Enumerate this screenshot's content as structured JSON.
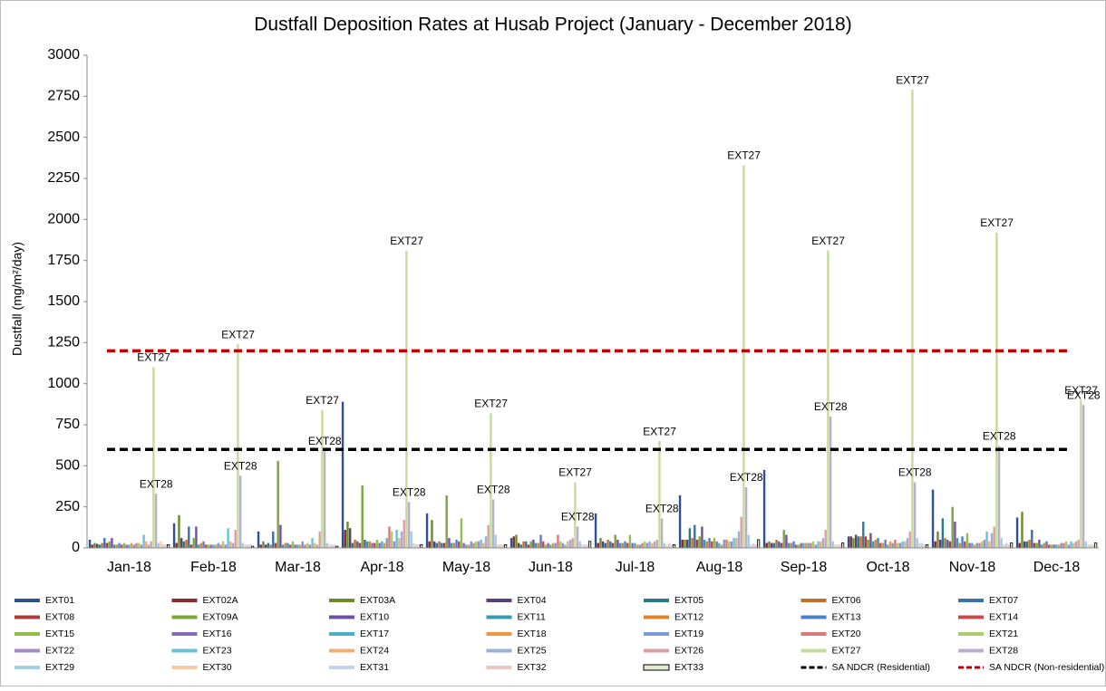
{
  "chart_data": {
    "type": "bar",
    "title": "Dustfall Deposition Rates at Husab Project (January - December 2018)",
    "y_label": "Dustfall (mg/m²/day)",
    "categories": [
      "Jan-18",
      "Feb-18",
      "Mar-18",
      "Apr-18",
      "May-18",
      "Jun-18",
      "Jul-18",
      "Aug-18",
      "Sep-18",
      "Oct-18",
      "Nov-18",
      "Dec-18"
    ],
    "ylim": [
      0,
      3000
    ],
    "yticks": [
      0,
      250,
      500,
      750,
      1000,
      1250,
      1500,
      1750,
      2000,
      2250,
      2500,
      2750,
      3000
    ],
    "grid": false,
    "legend": "bottom",
    "series": [
      {
        "name": "EXT01",
        "color": "#2f4f8f",
        "values": [
          50,
          150,
          100,
          890,
          210,
          60,
          210,
          320,
          475,
          70,
          355,
          185
        ]
      },
      {
        "name": "EXT02A",
        "color": "#8b2a2a",
        "values": [
          20,
          30,
          20,
          110,
          40,
          70,
          30,
          50,
          30,
          70,
          40,
          30
        ]
      },
      {
        "name": "EXT03A",
        "color": "#6b8a2e",
        "values": [
          30,
          200,
          40,
          160,
          170,
          80,
          60,
          50,
          40,
          60,
          100,
          220
        ]
      },
      {
        "name": "EXT04",
        "color": "#5a3f7f",
        "values": [
          25,
          60,
          20,
          120,
          40,
          30,
          40,
          50,
          30,
          80,
          50,
          40
        ]
      },
      {
        "name": "EXT05",
        "color": "#2a7a8a",
        "values": [
          20,
          40,
          30,
          30,
          30,
          20,
          30,
          120,
          30,
          70,
          180,
          40
        ]
      },
      {
        "name": "EXT06",
        "color": "#c0702a",
        "values": [
          30,
          50,
          20,
          50,
          40,
          40,
          50,
          60,
          50,
          70,
          60,
          50
        ]
      },
      {
        "name": "EXT07",
        "color": "#3a6fb0",
        "values": [
          60,
          130,
          100,
          40,
          30,
          40,
          40,
          140,
          40,
          160,
          50,
          110
        ]
      },
      {
        "name": "EXT08",
        "color": "#b03a3a",
        "values": [
          30,
          20,
          30,
          30,
          30,
          20,
          30,
          50,
          30,
          70,
          40,
          30
        ]
      },
      {
        "name": "EXT09A",
        "color": "#7aa63a",
        "values": [
          40,
          60,
          530,
          380,
          320,
          40,
          80,
          70,
          110,
          50,
          250,
          30
        ]
      },
      {
        "name": "EXT10",
        "color": "#6f4f9f",
        "values": [
          60,
          130,
          140,
          50,
          60,
          50,
          50,
          130,
          80,
          90,
          160,
          50
        ]
      },
      {
        "name": "EXT11",
        "color": "#3a9ab0",
        "values": [
          20,
          20,
          20,
          40,
          30,
          30,
          30,
          50,
          30,
          40,
          60,
          20
        ]
      },
      {
        "name": "EXT12",
        "color": "#e0832f",
        "values": [
          20,
          30,
          30,
          40,
          30,
          30,
          30,
          40,
          30,
          50,
          30,
          30
        ]
      },
      {
        "name": "EXT13",
        "color": "#4a80c8",
        "values": [
          30,
          40,
          30,
          30,
          50,
          80,
          40,
          60,
          40,
          60,
          70,
          40
        ]
      },
      {
        "name": "EXT14",
        "color": "#c84a4a",
        "values": [
          20,
          20,
          20,
          30,
          40,
          40,
          30,
          40,
          20,
          30,
          40,
          20
        ]
      },
      {
        "name": "EXT15",
        "color": "#8fbf4a",
        "values": [
          30,
          20,
          40,
          50,
          180,
          20,
          80,
          60,
          20,
          30,
          90,
          20
        ]
      },
      {
        "name": "EXT16",
        "color": "#8a6ab8",
        "values": [
          20,
          20,
          20,
          30,
          30,
          30,
          30,
          40,
          30,
          50,
          30,
          20
        ]
      },
      {
        "name": "EXT17",
        "color": "#4ab0c8",
        "values": [
          20,
          20,
          20,
          40,
          20,
          20,
          30,
          30,
          30,
          20,
          30,
          20
        ]
      },
      {
        "name": "EXT18",
        "color": "#f0963f",
        "values": [
          30,
          20,
          20,
          30,
          20,
          30,
          20,
          20,
          30,
          40,
          20,
          20
        ]
      },
      {
        "name": "EXT19",
        "color": "#7a9ad8",
        "values": [
          20,
          30,
          40,
          60,
          40,
          30,
          20,
          50,
          30,
          30,
          30,
          30
        ]
      },
      {
        "name": "EXT20",
        "color": "#d87a7a",
        "values": [
          30,
          20,
          20,
          130,
          30,
          80,
          30,
          50,
          30,
          50,
          30,
          30
        ]
      },
      {
        "name": "EXT21",
        "color": "#a8cf6a",
        "values": [
          30,
          40,
          30,
          100,
          40,
          40,
          40,
          40,
          40,
          30,
          40,
          40
        ]
      },
      {
        "name": "EXT22",
        "color": "#a48ac8",
        "values": [
          20,
          20,
          20,
          40,
          40,
          30,
          30,
          40,
          20,
          30,
          50,
          20
        ]
      },
      {
        "name": "EXT23",
        "color": "#6ac0d8",
        "values": [
          80,
          120,
          60,
          110,
          50,
          20,
          40,
          60,
          40,
          40,
          100,
          40
        ]
      },
      {
        "name": "EXT24",
        "color": "#f5ad70",
        "values": [
          40,
          40,
          30,
          60,
          30,
          40,
          30,
          60,
          40,
          40,
          40,
          30
        ]
      },
      {
        "name": "EXT25",
        "color": "#9ab0dc",
        "values": [
          20,
          30,
          20,
          100,
          70,
          50,
          40,
          100,
          60,
          60,
          90,
          40
        ]
      },
      {
        "name": "EXT26",
        "color": "#dca0a0",
        "values": [
          40,
          110,
          100,
          170,
          140,
          60,
          50,
          190,
          110,
          100,
          130,
          50
        ]
      },
      {
        "name": "EXT27",
        "color": "#c4dc9a",
        "show_name_labels": true,
        "values": [
          1100,
          1240,
          840,
          1810,
          820,
          400,
          650,
          2330,
          1810,
          2790,
          1920,
          900
        ]
      },
      {
        "name": "EXT28",
        "color": "#b8aed0",
        "show_name_labels": true,
        "values": [
          330,
          440,
          590,
          280,
          295,
          130,
          180,
          370,
          800,
          400,
          620,
          870
        ]
      },
      {
        "name": "EXT29",
        "color": "#a0d0e4",
        "values": [
          30,
          30,
          30,
          100,
          80,
          40,
          30,
          80,
          40,
          60,
          60,
          40
        ]
      },
      {
        "name": "EXT30",
        "color": "#f8c8a0",
        "values": [
          40,
          20,
          20,
          30,
          20,
          20,
          20,
          20,
          20,
          30,
          20,
          20
        ]
      },
      {
        "name": "EXT31",
        "color": "#c4d0ec",
        "values": [
          20,
          20,
          20,
          20,
          20,
          20,
          30,
          30,
          20,
          30,
          30,
          20
        ]
      },
      {
        "name": "EXT32",
        "color": "#ecc4c4",
        "values": [
          20,
          20,
          20,
          20,
          20,
          20,
          20,
          20,
          20,
          20,
          20,
          20
        ]
      },
      {
        "name": "EXT33",
        "color": "#e4ecd4",
        "outline": "#000000",
        "values": [
          20,
          10,
          10,
          20,
          20,
          40,
          20,
          50,
          30,
          20,
          30,
          30
        ]
      }
    ],
    "lines": [
      {
        "name": "SA NDCR (Residential)",
        "color": "#000000",
        "value": 600
      },
      {
        "name": "SA NDCR (Non-residential)",
        "color": "#c00000",
        "value": 1200
      }
    ]
  }
}
